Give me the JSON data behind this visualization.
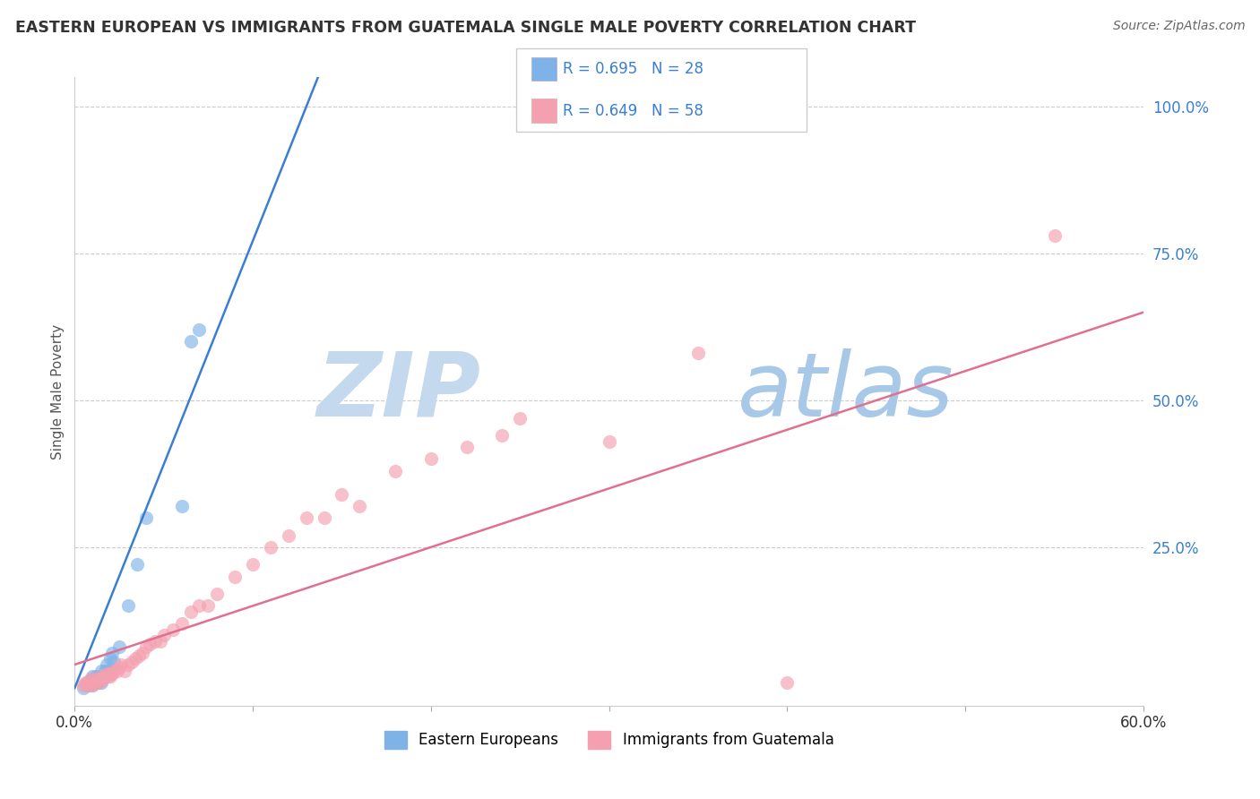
{
  "title": "EASTERN EUROPEAN VS IMMIGRANTS FROM GUATEMALA SINGLE MALE POVERTY CORRELATION CHART",
  "source": "Source: ZipAtlas.com",
  "ylabel": "Single Male Poverty",
  "xlim": [
    0.0,
    0.6
  ],
  "ylim": [
    -0.02,
    1.05
  ],
  "ytick_right": [
    0.25,
    0.5,
    0.75,
    1.0
  ],
  "ytick_right_labels": [
    "25.0%",
    "50.0%",
    "75.0%",
    "100.0%"
  ],
  "grid_color": "#cccccc",
  "background_color": "#ffffff",
  "series1_label": "Eastern Europeans",
  "series1_color": "#7fb3e8",
  "series1_R": 0.695,
  "series1_N": 28,
  "series2_label": "Immigrants from Guatemala",
  "series2_color": "#f4a0b0",
  "series2_R": 0.649,
  "series2_N": 58,
  "trend1_color": "#3a7ed4",
  "trend2_color": "#e07090",
  "watermark_zip": "ZIP",
  "watermark_atlas": "atlas",
  "watermark_color_zip": "#c5d9ee",
  "watermark_color_atlas": "#a8c8e8",
  "title_color": "#333333",
  "axis_label_color": "#555555",
  "right_tick_color": "#3a7ed4",
  "trend1_x0": 0.0,
  "trend1_y0": 0.01,
  "trend1_x1": 0.13,
  "trend1_y1": 1.0,
  "trend2_x0": 0.0,
  "trend2_y0": 0.05,
  "trend2_x1": 0.6,
  "trend2_y1": 0.65,
  "scatter1_x": [
    0.005,
    0.007,
    0.008,
    0.01,
    0.01,
    0.01,
    0.01,
    0.012,
    0.012,
    0.013,
    0.013,
    0.015,
    0.015,
    0.015,
    0.016,
    0.017,
    0.018,
    0.019,
    0.02,
    0.021,
    0.022,
    0.025,
    0.03,
    0.035,
    0.04,
    0.06,
    0.065,
    0.07
  ],
  "scatter1_y": [
    0.01,
    0.02,
    0.015,
    0.015,
    0.02,
    0.025,
    0.03,
    0.02,
    0.03,
    0.02,
    0.025,
    0.02,
    0.03,
    0.04,
    0.03,
    0.04,
    0.05,
    0.04,
    0.06,
    0.07,
    0.055,
    0.08,
    0.15,
    0.22,
    0.3,
    0.32,
    0.6,
    0.62
  ],
  "scatter2_x": [
    0.005,
    0.006,
    0.007,
    0.008,
    0.009,
    0.01,
    0.01,
    0.011,
    0.012,
    0.013,
    0.014,
    0.015,
    0.015,
    0.016,
    0.017,
    0.018,
    0.019,
    0.02,
    0.02,
    0.021,
    0.022,
    0.024,
    0.025,
    0.026,
    0.028,
    0.03,
    0.032,
    0.034,
    0.036,
    0.038,
    0.04,
    0.042,
    0.045,
    0.048,
    0.05,
    0.055,
    0.06,
    0.065,
    0.07,
    0.075,
    0.08,
    0.09,
    0.1,
    0.11,
    0.12,
    0.13,
    0.14,
    0.15,
    0.16,
    0.18,
    0.2,
    0.22,
    0.24,
    0.25,
    0.3,
    0.35,
    0.4,
    0.55
  ],
  "scatter2_y": [
    0.015,
    0.02,
    0.015,
    0.02,
    0.025,
    0.015,
    0.02,
    0.025,
    0.02,
    0.025,
    0.02,
    0.025,
    0.03,
    0.025,
    0.03,
    0.035,
    0.03,
    0.03,
    0.035,
    0.035,
    0.04,
    0.04,
    0.045,
    0.05,
    0.04,
    0.05,
    0.055,
    0.06,
    0.065,
    0.07,
    0.08,
    0.085,
    0.09,
    0.09,
    0.1,
    0.11,
    0.12,
    0.14,
    0.15,
    0.15,
    0.17,
    0.2,
    0.22,
    0.25,
    0.27,
    0.3,
    0.3,
    0.34,
    0.32,
    0.38,
    0.4,
    0.42,
    0.44,
    0.47,
    0.43,
    0.58,
    0.02,
    0.78
  ]
}
